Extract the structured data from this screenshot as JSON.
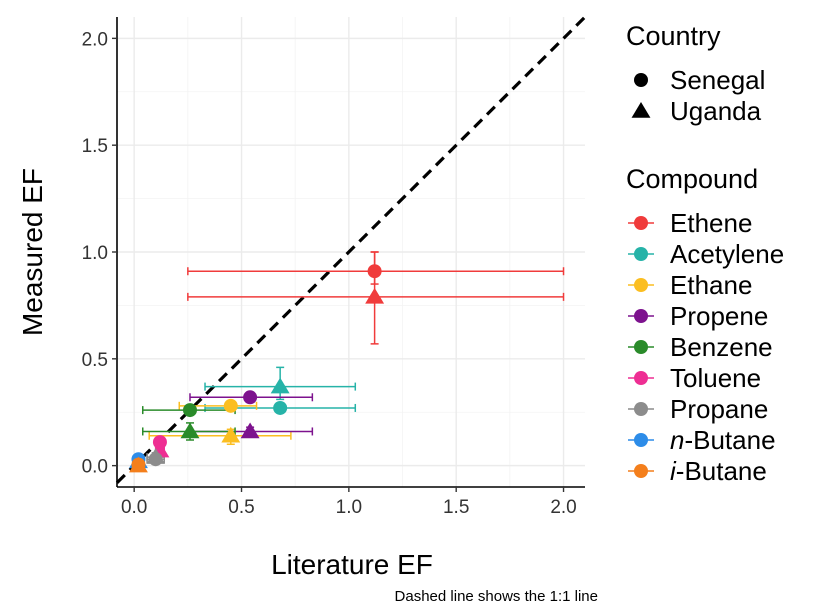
{
  "chart_data": {
    "type": "scatter",
    "xlabel": "Literature EF",
    "ylabel": "Measured EF",
    "caption": "Dashed line shows the 1:1 line",
    "xlim": [
      -0.08,
      2.1
    ],
    "ylim": [
      -0.1,
      2.1
    ],
    "x_ticks": [
      0.0,
      0.5,
      1.0,
      1.5,
      2.0
    ],
    "y_ticks": [
      0.0,
      0.5,
      1.0,
      1.5,
      2.0
    ],
    "x_tick_labels": [
      "0.0",
      "0.5",
      "1.0",
      "1.5",
      "2.0"
    ],
    "y_tick_labels": [
      "0.0",
      "0.5",
      "1.0",
      "1.5",
      "2.0"
    ],
    "grid": true,
    "reference_line": {
      "type": "1:1",
      "style": "dashed",
      "color": "#000000"
    },
    "legend_position": "right",
    "shape_legend": {
      "title": "Country",
      "entries": [
        {
          "label": "Senegal",
          "shape": "circle"
        },
        {
          "label": "Uganda",
          "shape": "triangle"
        }
      ]
    },
    "color_legend": {
      "title": "Compound",
      "entries": [
        {
          "name": "Ethene",
          "prefix": "",
          "base": "Ethene",
          "color": "#F03B3B"
        },
        {
          "name": "Acetylene",
          "prefix": "",
          "base": "Acetylene",
          "color": "#26B3A8"
        },
        {
          "name": "Ethane",
          "prefix": "",
          "base": "Ethane",
          "color": "#FBBE21"
        },
        {
          "name": "Propene",
          "prefix": "",
          "base": "Propene",
          "color": "#7D128E"
        },
        {
          "name": "Benzene",
          "prefix": "",
          "base": "Benzene",
          "color": "#2A8B2A"
        },
        {
          "name": "Toluene",
          "prefix": "",
          "base": "Toluene",
          "color": "#EE2E93"
        },
        {
          "name": "Propane",
          "prefix": "",
          "base": "Propane",
          "color": "#8C8C8C"
        },
        {
          "name": "n-Butane",
          "prefix": "n",
          "base": "-Butane",
          "color": "#2D8CE8"
        },
        {
          "name": "i-Butane",
          "prefix": "i",
          "base": "-Butane",
          "color": "#F47F1C"
        }
      ]
    },
    "points": [
      {
        "compound": "Ethene",
        "country": "Senegal",
        "x": 1.12,
        "y": 0.91,
        "xerr": [
          0.25,
          2.0
        ],
        "yerr": [
          0.85,
          1.0
        ]
      },
      {
        "compound": "Ethene",
        "country": "Uganda",
        "x": 1.12,
        "y": 0.79,
        "xerr": [
          0.25,
          2.0
        ],
        "yerr": [
          0.57,
          1.0
        ]
      },
      {
        "compound": "Acetylene",
        "country": "Senegal",
        "x": 0.68,
        "y": 0.27,
        "xerr": [
          0.33,
          1.03
        ],
        "yerr": [
          0.25,
          0.29
        ]
      },
      {
        "compound": "Acetylene",
        "country": "Uganda",
        "x": 0.68,
        "y": 0.37,
        "xerr": [
          0.33,
          1.03
        ],
        "yerr": [
          0.31,
          0.46
        ]
      },
      {
        "compound": "Ethane",
        "country": "Senegal",
        "x": 0.45,
        "y": 0.28,
        "xerr": [
          0.21,
          0.57
        ],
        "yerr": [
          0.26,
          0.3
        ]
      },
      {
        "compound": "Ethane",
        "country": "Uganda",
        "x": 0.45,
        "y": 0.14,
        "xerr": [
          0.07,
          0.73
        ],
        "yerr": [
          0.1,
          0.17
        ]
      },
      {
        "compound": "Propene",
        "country": "Senegal",
        "x": 0.54,
        "y": 0.32,
        "xerr": [
          0.26,
          0.83
        ],
        "yerr": [
          0.3,
          0.34
        ]
      },
      {
        "compound": "Propene",
        "country": "Uganda",
        "x": 0.54,
        "y": 0.16,
        "xerr": [
          0.26,
          0.83
        ],
        "yerr": [
          0.14,
          0.18
        ]
      },
      {
        "compound": "Benzene",
        "country": "Senegal",
        "x": 0.26,
        "y": 0.26,
        "xerr": [
          0.04,
          0.47
        ],
        "yerr": [
          0.24,
          0.28
        ]
      },
      {
        "compound": "Benzene",
        "country": "Uganda",
        "x": 0.26,
        "y": 0.16,
        "xerr": [
          0.04,
          0.47
        ],
        "yerr": [
          0.12,
          0.2
        ]
      },
      {
        "compound": "Toluene",
        "country": "Senegal",
        "x": 0.12,
        "y": 0.11,
        "xerr": [
          0.1,
          0.14
        ],
        "yerr": [
          0.09,
          0.13
        ]
      },
      {
        "compound": "Toluene",
        "country": "Uganda",
        "x": 0.12,
        "y": 0.07,
        "xerr": [
          0.1,
          0.14
        ],
        "yerr": [
          0.05,
          0.09
        ]
      },
      {
        "compound": "Propane",
        "country": "Senegal",
        "x": 0.1,
        "y": 0.03,
        "xerr": [
          0.06,
          0.14
        ],
        "yerr": [
          0.01,
          0.05
        ]
      },
      {
        "compound": "Propane",
        "country": "Uganda",
        "x": 0.1,
        "y": 0.04,
        "xerr": [
          0.06,
          0.14
        ],
        "yerr": [
          0.02,
          0.06
        ]
      },
      {
        "compound": "n-Butane",
        "country": "Senegal",
        "x": 0.02,
        "y": 0.03,
        "xerr": [
          0.0,
          0.04
        ],
        "yerr": [
          0.02,
          0.04
        ]
      },
      {
        "compound": "n-Butane",
        "country": "Uganda",
        "x": 0.02,
        "y": 0.02,
        "xerr": [
          0.0,
          0.04
        ],
        "yerr": [
          0.01,
          0.03
        ]
      },
      {
        "compound": "i-Butane",
        "country": "Senegal",
        "x": 0.02,
        "y": 0.005,
        "xerr": [
          0.0,
          0.03
        ],
        "yerr": [
          0.0,
          0.01
        ]
      },
      {
        "compound": "i-Butane",
        "country": "Uganda",
        "x": 0.02,
        "y": 0.0,
        "xerr": [
          0.0,
          0.03
        ],
        "yerr": [
          0.0,
          0.01
        ]
      }
    ]
  }
}
